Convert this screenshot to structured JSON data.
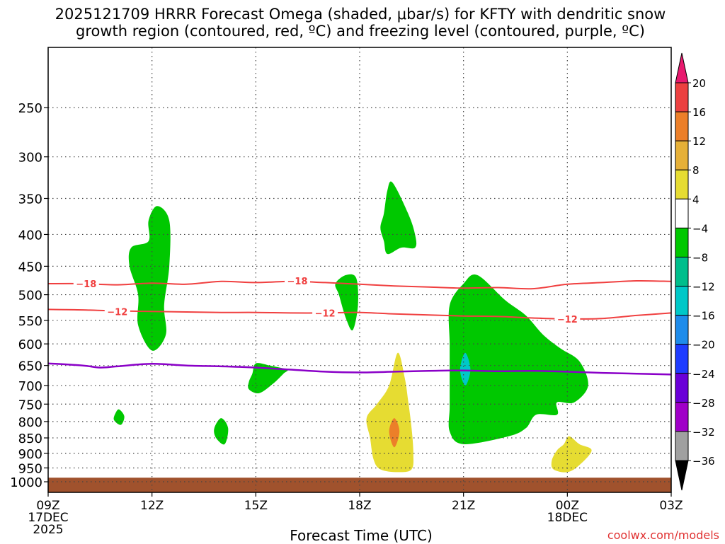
{
  "chart_data": {
    "type": "heatmap",
    "title_line1": "2025121709 HRRR Forecast Omega (shaded, μbar/s) for KFTY with dendritic snow",
    "title_line2": "growth region (contoured, red, ºC) and freezing level (contoured, purple, ºC)",
    "xlabel": "Forecast Time (UTC)",
    "ylabel": "",
    "credit": "coolwx.com/models",
    "x_range_hours": [
      0,
      18
    ],
    "p_top": 200,
    "p_bottom": 1040,
    "y_ticks": [
      250,
      300,
      350,
      400,
      450,
      500,
      550,
      600,
      650,
      700,
      750,
      800,
      850,
      900,
      950,
      1000
    ],
    "x_ticks": [
      {
        "h": 0,
        "l1": "09Z",
        "l2": "17DEC",
        "l3": "2025"
      },
      {
        "h": 3,
        "l1": "12Z",
        "l2": "",
        "l3": ""
      },
      {
        "h": 6,
        "l1": "15Z",
        "l2": "",
        "l3": ""
      },
      {
        "h": 9,
        "l1": "18Z",
        "l2": "",
        "l3": ""
      },
      {
        "h": 12,
        "l1": "21Z",
        "l2": "",
        "l3": ""
      },
      {
        "h": 15,
        "l1": "00Z",
        "l2": "18DEC",
        "l3": ""
      },
      {
        "h": 18,
        "l1": "03Z",
        "l2": "",
        "l3": ""
      }
    ],
    "ground_top_pressure": 985,
    "ground_color": "#a0522d",
    "colorbar": {
      "levels": [
        "20",
        "16",
        "12",
        "8",
        "4",
        "−4",
        "−8",
        "−12",
        "−16",
        "−20",
        "−24",
        "−28",
        "−32",
        "−36"
      ],
      "colors": [
        "#e8196e",
        "#ec4040",
        "#ec7f29",
        "#e6b038",
        "#e6dc32",
        "#ffffff",
        "#00c800",
        "#00be8c",
        "#00c8c8",
        "#1e8ceb",
        "#1e3cff",
        "#6a00d8",
        "#a000c8",
        "#a0a0a0",
        "#000000"
      ]
    },
    "omega_regions": [
      {
        "name": "green-12z-upper",
        "color": "#00c800",
        "points": [
          [
            3.15,
            360
          ],
          [
            3.5,
            380
          ],
          [
            3.5,
            450
          ],
          [
            3.35,
            520
          ],
          [
            3.4,
            580
          ],
          [
            3.0,
            615
          ],
          [
            2.6,
            560
          ],
          [
            2.6,
            500
          ],
          [
            2.35,
            450
          ],
          [
            2.4,
            420
          ],
          [
            2.9,
            410
          ],
          [
            2.9,
            380
          ]
        ]
      },
      {
        "name": "green-1930-upper",
        "color": "#00c800",
        "points": [
          [
            9.95,
            330
          ],
          [
            10.4,
            370
          ],
          [
            10.6,
            400
          ],
          [
            10.6,
            420
          ],
          [
            10.2,
            420
          ],
          [
            9.8,
            430
          ],
          [
            9.7,
            410
          ],
          [
            9.6,
            390
          ],
          [
            9.7,
            370
          ],
          [
            9.8,
            340
          ]
        ]
      },
      {
        "name": "green-18z",
        "color": "#00c800",
        "points": [
          [
            8.6,
            465
          ],
          [
            8.9,
            470
          ],
          [
            8.95,
            520
          ],
          [
            8.8,
            570
          ],
          [
            8.6,
            545
          ],
          [
            8.4,
            500
          ],
          [
            8.3,
            480
          ]
        ]
      },
      {
        "name": "green-15z",
        "color": "#00c800",
        "points": [
          [
            6.0,
            645
          ],
          [
            6.4,
            650
          ],
          [
            6.9,
            660
          ],
          [
            6.8,
            670
          ],
          [
            6.5,
            695
          ],
          [
            6.1,
            720
          ],
          [
            5.8,
            710
          ],
          [
            5.8,
            690
          ],
          [
            5.9,
            670
          ]
        ]
      },
      {
        "name": "green-11z",
        "color": "#00c800",
        "points": [
          [
            2.05,
            765
          ],
          [
            2.2,
            785
          ],
          [
            2.1,
            810
          ],
          [
            1.9,
            795
          ],
          [
            1.95,
            775
          ]
        ]
      },
      {
        "name": "green-14z",
        "color": "#00c800",
        "points": [
          [
            5.0,
            790
          ],
          [
            5.2,
            820
          ],
          [
            5.1,
            870
          ],
          [
            4.85,
            850
          ],
          [
            4.8,
            820
          ]
        ]
      },
      {
        "name": "green-21z-main",
        "color": "#00c800",
        "points": [
          [
            12.4,
            465
          ],
          [
            13.2,
            510
          ],
          [
            13.8,
            540
          ],
          [
            14.3,
            580
          ],
          [
            14.8,
            610
          ],
          [
            15.35,
            640
          ],
          [
            15.6,
            700
          ],
          [
            15.2,
            745
          ],
          [
            14.7,
            745
          ],
          [
            14.7,
            780
          ],
          [
            14.1,
            780
          ],
          [
            13.8,
            820
          ],
          [
            13.3,
            845
          ],
          [
            12.0,
            870
          ],
          [
            11.6,
            830
          ],
          [
            11.6,
            760
          ],
          [
            11.6,
            690
          ],
          [
            11.6,
            600
          ],
          [
            11.6,
            520
          ],
          [
            12.0,
            480
          ]
        ]
      },
      {
        "name": "cyan-21z",
        "color": "#00c8c8",
        "points": [
          [
            12.05,
            620
          ],
          [
            12.2,
            660
          ],
          [
            12.05,
            700
          ],
          [
            11.9,
            660
          ]
        ]
      },
      {
        "name": "yellow-19z",
        "color": "#e6dc32",
        "points": [
          [
            10.1,
            620
          ],
          [
            10.3,
            680
          ],
          [
            10.4,
            740
          ],
          [
            10.5,
            820
          ],
          [
            10.55,
            900
          ],
          [
            10.5,
            955
          ],
          [
            10.1,
            965
          ],
          [
            9.6,
            955
          ],
          [
            9.4,
            920
          ],
          [
            9.3,
            850
          ],
          [
            9.2,
            790
          ],
          [
            9.5,
            750
          ],
          [
            9.85,
            700
          ]
        ]
      },
      {
        "name": "orange-19z",
        "color": "#ec7f29",
        "points": [
          [
            10.0,
            790
          ],
          [
            10.15,
            830
          ],
          [
            10.0,
            880
          ],
          [
            9.85,
            830
          ]
        ]
      },
      {
        "name": "yellow-00z",
        "color": "#e6dc32",
        "points": [
          [
            15.05,
            845
          ],
          [
            15.35,
            870
          ],
          [
            15.7,
            890
          ],
          [
            15.35,
            940
          ],
          [
            15.0,
            965
          ],
          [
            14.6,
            955
          ],
          [
            14.55,
            925
          ],
          [
            14.7,
            890
          ],
          [
            14.9,
            870
          ]
        ]
      }
    ],
    "contours": [
      {
        "name": "dgz-minus-18",
        "label": "−18",
        "color": "#f04040",
        "width": 2,
        "label_at": [
          [
            1.1,
            480
          ],
          [
            7.2,
            475
          ]
        ],
        "points": [
          [
            0,
            480
          ],
          [
            1,
            480
          ],
          [
            2,
            482
          ],
          [
            3,
            479
          ],
          [
            4,
            481
          ],
          [
            5,
            476
          ],
          [
            6,
            478
          ],
          [
            7,
            476
          ],
          [
            8,
            478
          ],
          [
            9,
            481
          ],
          [
            10,
            484
          ],
          [
            11,
            486
          ],
          [
            12,
            488
          ],
          [
            13,
            487
          ],
          [
            14,
            489
          ],
          [
            15,
            481
          ],
          [
            16,
            478
          ],
          [
            17,
            475
          ],
          [
            18,
            476
          ]
        ]
      },
      {
        "name": "dgz-minus-12",
        "label": "−12",
        "color": "#f04040",
        "width": 2,
        "label_at": [
          [
            2.0,
            532
          ],
          [
            8.0,
            535
          ],
          [
            15.0,
            547
          ]
        ],
        "points": [
          [
            0,
            528
          ],
          [
            1,
            529
          ],
          [
            2,
            531
          ],
          [
            3,
            532
          ],
          [
            4,
            533
          ],
          [
            5,
            534
          ],
          [
            6,
            534
          ],
          [
            7,
            535
          ],
          [
            8,
            535
          ],
          [
            9,
            534
          ],
          [
            10,
            537
          ],
          [
            11,
            539
          ],
          [
            12,
            541
          ],
          [
            13,
            542
          ],
          [
            14,
            545
          ],
          [
            15,
            547
          ],
          [
            16,
            546
          ],
          [
            17,
            540
          ],
          [
            18,
            535
          ]
        ]
      },
      {
        "name": "freezing-level",
        "label": "",
        "color": "#8a00c8",
        "width": 2.5,
        "label_at": [],
        "points": [
          [
            0,
            645
          ],
          [
            1,
            650
          ],
          [
            1.5,
            655
          ],
          [
            2,
            652
          ],
          [
            3,
            646
          ],
          [
            4,
            650
          ],
          [
            5,
            652
          ],
          [
            6,
            655
          ],
          [
            7,
            660
          ],
          [
            8,
            665
          ],
          [
            9,
            667
          ],
          [
            10,
            665
          ],
          [
            11,
            663
          ],
          [
            12,
            662
          ],
          [
            13,
            664
          ],
          [
            14,
            663
          ],
          [
            15,
            665
          ],
          [
            16,
            668
          ],
          [
            17,
            670
          ],
          [
            18,
            672
          ]
        ]
      }
    ]
  }
}
